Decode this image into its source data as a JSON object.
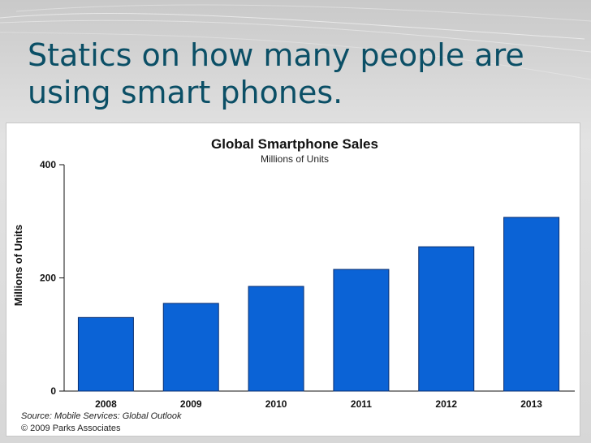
{
  "slide": {
    "title_line_1": "Statics on how many people are",
    "title_line_2": "using smart phones."
  },
  "colors": {
    "title": "#0b4f66",
    "bar": "#0b63d6",
    "bar_edge": "#0a2f70",
    "axis": "#111111"
  },
  "chart_data": {
    "type": "bar",
    "title": "Global Smartphone Sales",
    "subtitle": "Millions of Units",
    "xlabel": "",
    "ylabel": "Millions of Units",
    "categories": [
      "2008",
      "2009",
      "2010",
      "2011",
      "2012",
      "2013"
    ],
    "values": [
      130,
      155,
      185,
      215,
      255,
      307
    ],
    "ylim": [
      0,
      400
    ],
    "yticks": [
      0,
      200,
      400
    ],
    "grid": false,
    "source": "Source: Mobile Services: Global Outlook",
    "copyright": "© 2009 Parks Associates"
  }
}
